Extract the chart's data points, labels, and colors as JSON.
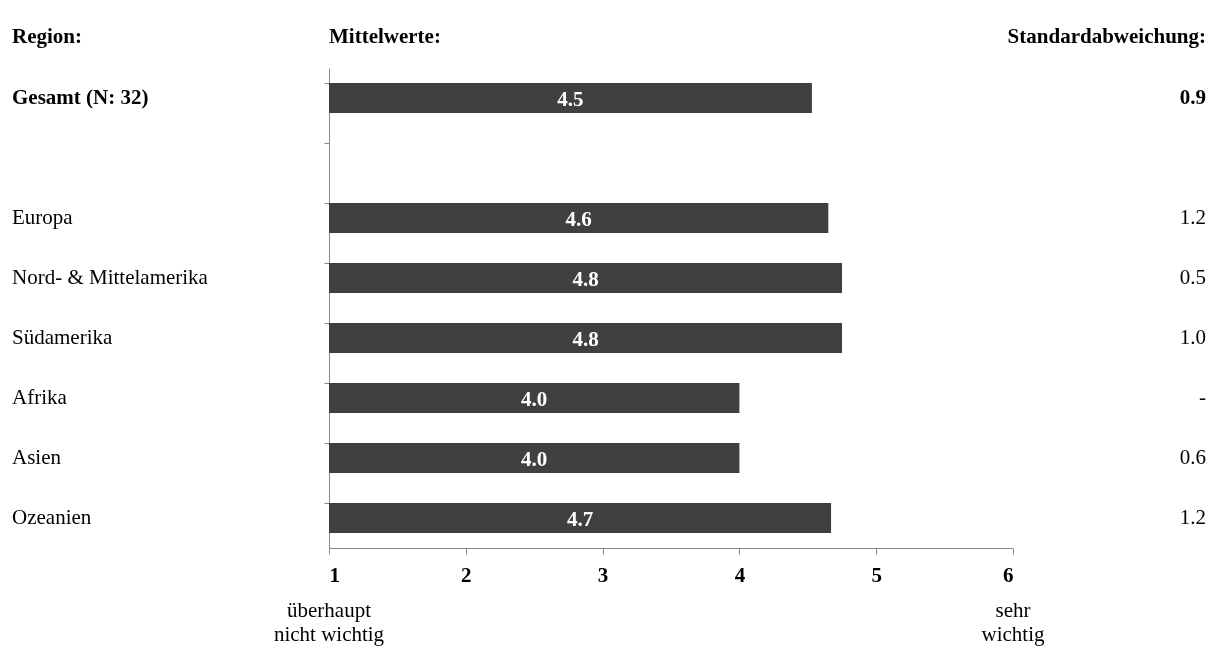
{
  "chart_data": {
    "type": "bar",
    "orientation": "horizontal",
    "categories": [
      "Gesamt (N: 32)",
      null,
      "Europa",
      "Nord- & Mittelamerika",
      "Südamerika",
      "Afrika",
      "Asien",
      "Ozeanien"
    ],
    "values": [
      4.53,
      null,
      4.65,
      4.75,
      4.75,
      4.0,
      4.0,
      4.67
    ],
    "value_labels": [
      "4.5",
      null,
      "4.6",
      "4.8",
      "4.8",
      "4.0",
      "4.0",
      "4.7"
    ],
    "color": "#404040",
    "xlim": [
      1,
      6
    ],
    "xticks": [
      1,
      2,
      3,
      4,
      5,
      6
    ],
    "grid": false,
    "annotations": [
      "Region:",
      "Mittelwerte:",
      "Standardabweichung:",
      "überhaupt\nnicht wichtig",
      "sehr\nwichtig",
      "0.9",
      "1.2",
      "0.5",
      "1.0",
      "-",
      "0.6",
      "1.2"
    ]
  }
}
